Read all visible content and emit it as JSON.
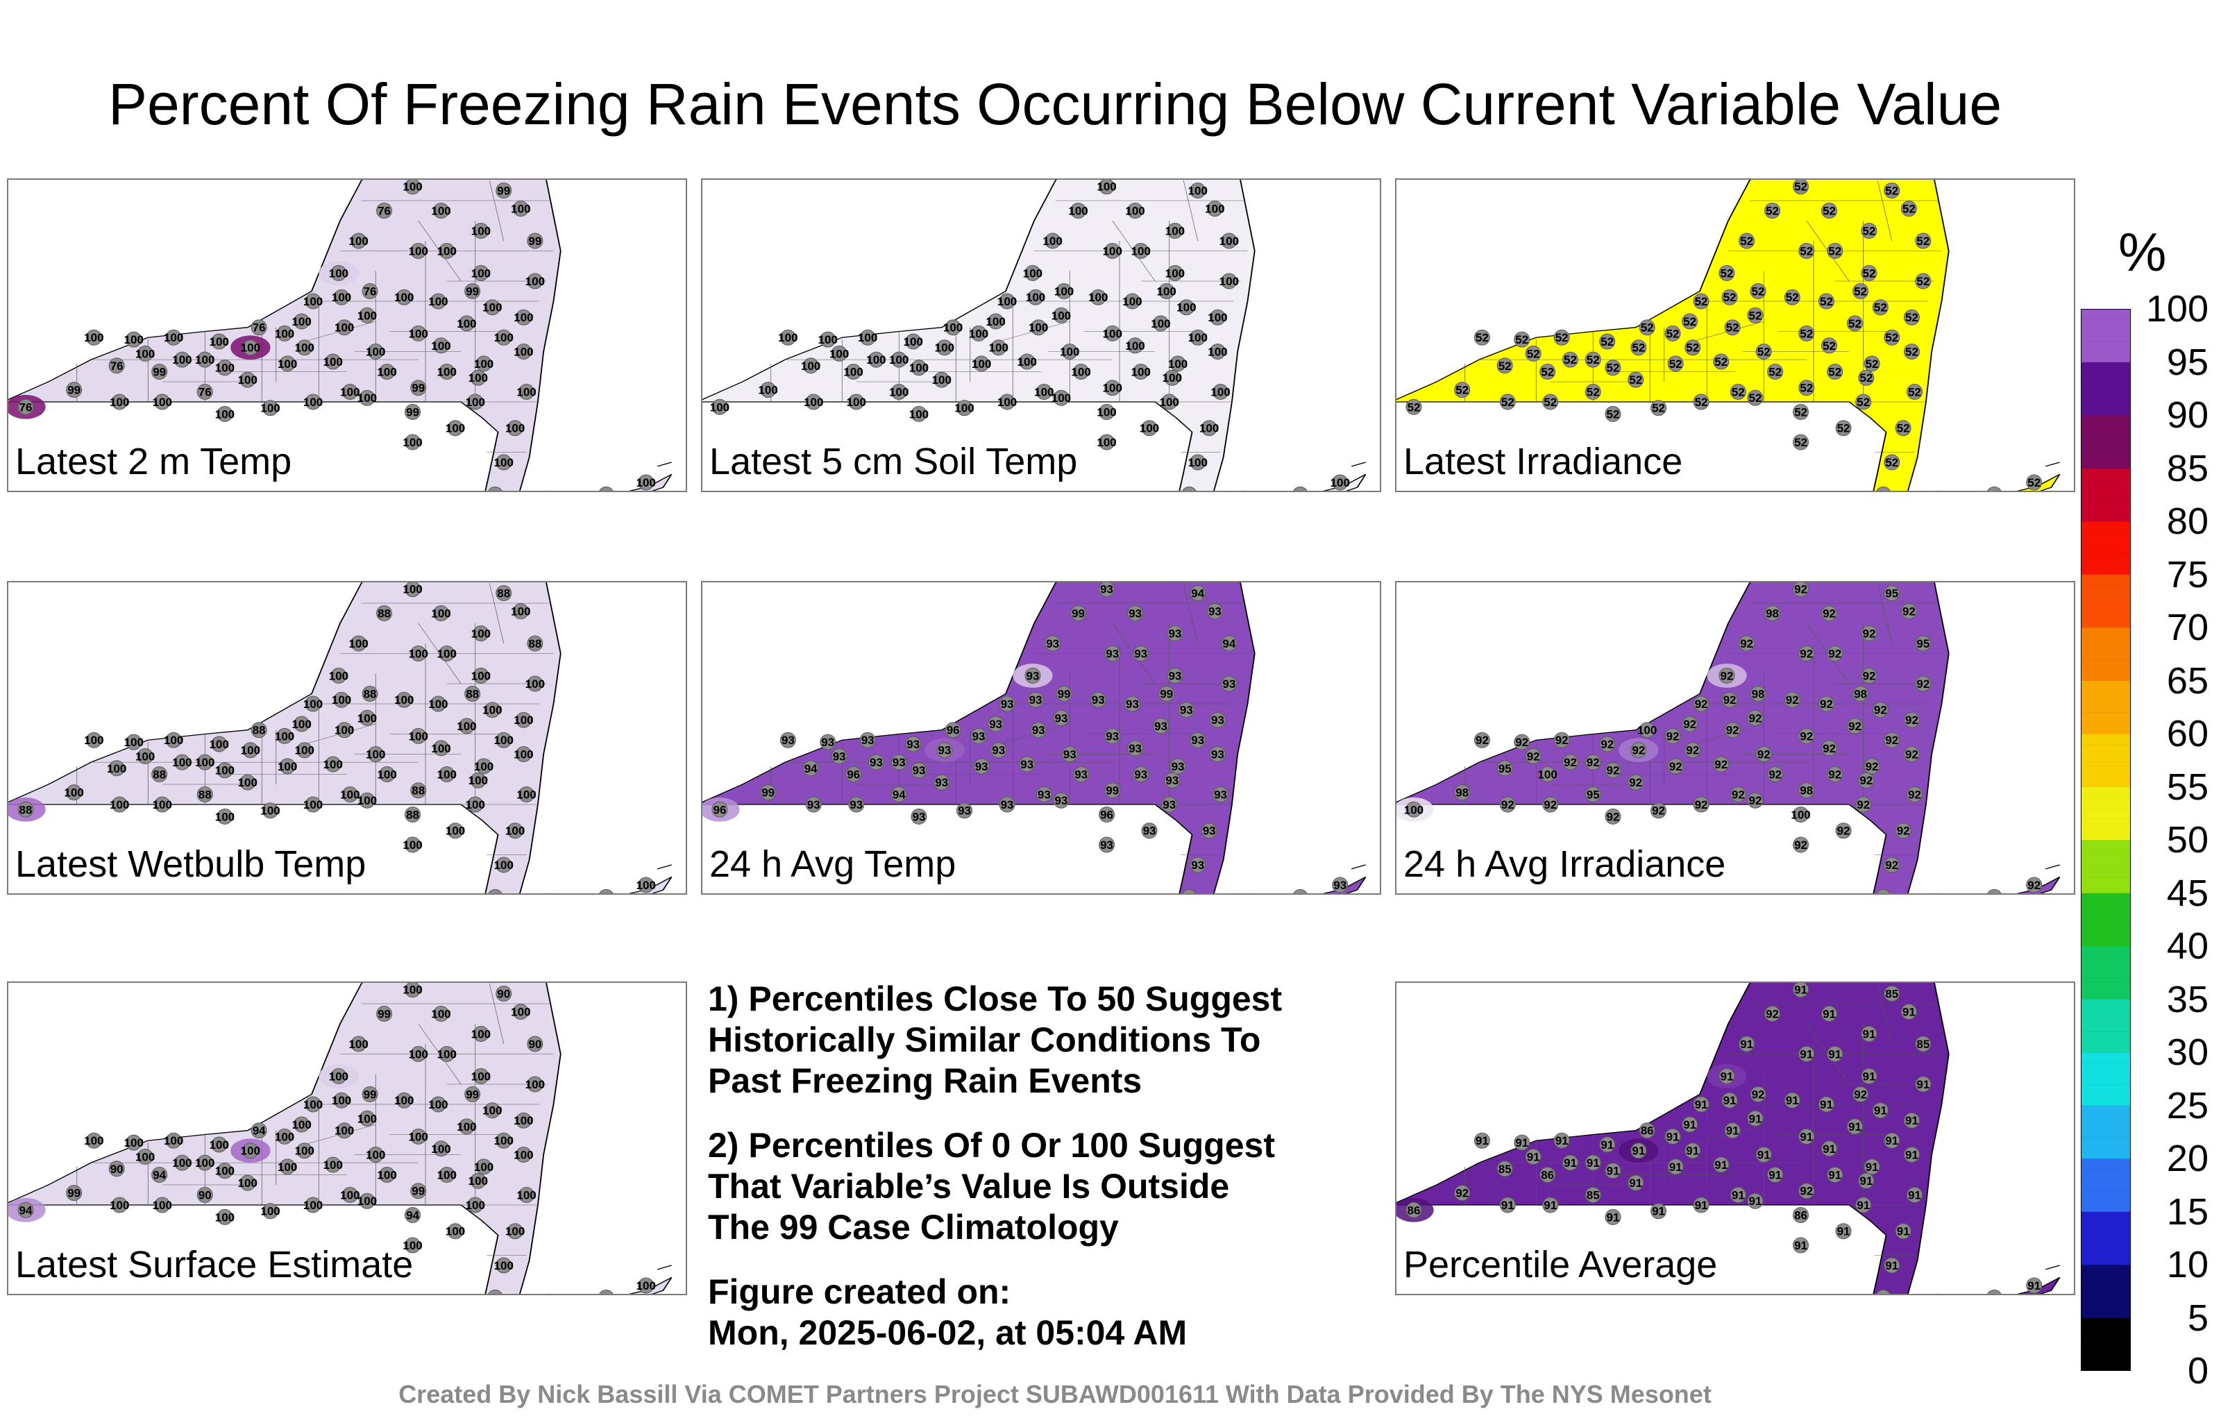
{
  "title": "Percent Of Freezing Rain Events Occurring Below Current Variable Value",
  "colorbar": {
    "unit": "%",
    "ticks": [
      "100",
      "95",
      "90",
      "85",
      "80",
      "75",
      "70",
      "65",
      "60",
      "55",
      "50",
      "45",
      "40",
      "35",
      "30",
      "25",
      "20",
      "15",
      "10",
      "5",
      "0"
    ],
    "stops": [
      {
        "value": 0,
        "color": "#000000"
      },
      {
        "value": 5,
        "color": "#0a0a6e"
      },
      {
        "value": 10,
        "color": "#1f1fd0"
      },
      {
        "value": 15,
        "color": "#2f6ef0"
      },
      {
        "value": 20,
        "color": "#20b4f0"
      },
      {
        "value": 25,
        "color": "#10e0e0"
      },
      {
        "value": 30,
        "color": "#10d8a8"
      },
      {
        "value": 35,
        "color": "#10c860"
      },
      {
        "value": 40,
        "color": "#20c020"
      },
      {
        "value": 45,
        "color": "#90e010"
      },
      {
        "value": 50,
        "color": "#f0f010"
      },
      {
        "value": 55,
        "color": "#f8d000"
      },
      {
        "value": 60,
        "color": "#f8a800"
      },
      {
        "value": 65,
        "color": "#f88000"
      },
      {
        "value": 70,
        "color": "#f85000"
      },
      {
        "value": 75,
        "color": "#f81000"
      },
      {
        "value": 80,
        "color": "#c8002a"
      },
      {
        "value": 85,
        "color": "#7a0a60"
      },
      {
        "value": 90,
        "color": "#5a1090"
      },
      {
        "value": 95,
        "color": "#9a58c8"
      },
      {
        "value": 100,
        "color": "#f4f0f8"
      }
    ]
  },
  "panels": [
    {
      "id": "temp2m",
      "label": "Latest 2 m Temp",
      "fill": "#e4daee",
      "default_value": "100",
      "extras": [
        {
          "value": "76",
          "color": "#7b0f70"
        },
        {
          "value": "99",
          "color": "#dccfe8"
        },
        {
          "value": "76",
          "color": "#7b0f70"
        },
        {
          "value": "99",
          "color": "#dccfe8"
        }
      ]
    },
    {
      "id": "soil5cm",
      "label": "Latest 5 cm Soil Temp",
      "fill": "#f2eef6",
      "default_value": "100",
      "extras": []
    },
    {
      "id": "irradiance",
      "label": "Latest Irradiance",
      "fill": "#ffff00",
      "default_value": "52",
      "extras": []
    },
    {
      "id": "wetbulb",
      "label": "Latest Wetbulb Temp",
      "fill": "#e4daee",
      "default_value": "100",
      "extras": [
        {
          "value": "88",
          "color": "#a468c8"
        }
      ]
    },
    {
      "id": "avgtemp24",
      "label": "24 h Avg Temp",
      "fill": "#8a4cbc",
      "default_value": "93",
      "extras": [
        {
          "value": "96",
          "color": "#b690d4"
        },
        {
          "value": "99",
          "color": "#d8c8e6"
        },
        {
          "value": "94",
          "color": "#9a60c4"
        }
      ]
    },
    {
      "id": "avgirr24",
      "label": "24 h Avg Irradiance",
      "fill": "#8a4cbc",
      "default_value": "92",
      "extras": [
        {
          "value": "100",
          "color": "#ede6f3"
        },
        {
          "value": "98",
          "color": "#d0bce2"
        },
        {
          "value": "95",
          "color": "#a57ad0"
        }
      ]
    },
    {
      "id": "surface",
      "label": "Latest Surface Estimate",
      "fill": "#e4daee",
      "default_value": "100",
      "extras": [
        {
          "value": "94",
          "color": "#b48cd2"
        },
        {
          "value": "99",
          "color": "#dccfe8"
        },
        {
          "value": "90",
          "color": "#a468c8"
        }
      ]
    },
    {
      "id": "average",
      "label": "Percentile Average",
      "fill": "#6a24a0",
      "default_value": "91",
      "extras": [
        {
          "value": "86",
          "color": "#52107c"
        },
        {
          "value": "92",
          "color": "#7a38ac"
        },
        {
          "value": "85",
          "color": "#52107c"
        }
      ]
    }
  ],
  "notes": [
    "1) Percentiles Close To 50 Suggest\nHistorically Similar Conditions To\nPast Freezing Rain Events",
    "2) Percentiles Of 0 Or 100 Suggest\nThat Variable’s Value Is Outside\nThe 99 Case Climatology"
  ],
  "created": "Figure created on:\nMon, 2025-06-02, at 05:04 AM",
  "footer": "Created By Nick Bassill Via COMET Partners Project SUBAWD001611 With Data Provided By The NYS Mesonet"
}
